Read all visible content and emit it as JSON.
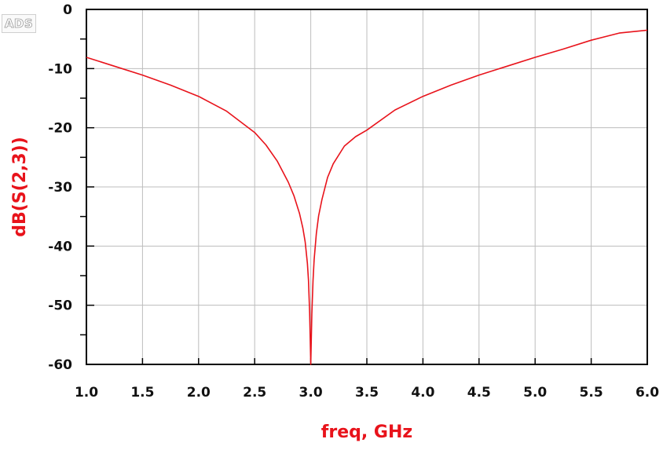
{
  "logo": {
    "text": "ADS"
  },
  "chart_data": {
    "type": "line",
    "title": "",
    "xlabel": "freq, GHz",
    "ylabel": "dB(S(2,3))",
    "xlim": [
      1.0,
      6.0
    ],
    "ylim": [
      -60,
      0
    ],
    "x_ticks": [
      "1.0",
      "1.5",
      "2.0",
      "2.5",
      "3.0",
      "3.5",
      "4.0",
      "4.5",
      "5.0",
      "5.5",
      "6.0"
    ],
    "y_ticks": [
      "0",
      "-10",
      "-20",
      "-30",
      "-40",
      "-50",
      "-60"
    ],
    "grid": true,
    "legend": "none",
    "line_color": "#e8131b",
    "label_color": "#e8131b",
    "series": [
      {
        "x": [
          1.0,
          1.25,
          1.5,
          1.75,
          2.0,
          2.25,
          2.5,
          2.6,
          2.7,
          2.8,
          2.85,
          2.9,
          2.93,
          2.95,
          2.97,
          2.98,
          2.99,
          3.0,
          3.01,
          3.02,
          3.03,
          3.05,
          3.07,
          3.1,
          3.15,
          3.2,
          3.3,
          3.4,
          3.5,
          3.75,
          4.0,
          4.25,
          4.5,
          4.75,
          5.0,
          5.25,
          5.5,
          5.75,
          6.0
        ],
        "y": [
          -8.1,
          -9.6,
          -11.1,
          -12.8,
          -14.7,
          -17.2,
          -20.8,
          -22.9,
          -25.6,
          -29.2,
          -31.5,
          -34.5,
          -37.0,
          -39.3,
          -42.9,
          -45.8,
          -51.4,
          -60.0,
          -51.4,
          -45.8,
          -42.3,
          -37.9,
          -34.9,
          -32.1,
          -28.4,
          -26.1,
          -23.1,
          -21.5,
          -20.4,
          -17.0,
          -14.7,
          -12.8,
          -11.1,
          -9.6,
          -8.1,
          -6.7,
          -5.2,
          -4.0,
          -3.5
        ]
      }
    ]
  }
}
